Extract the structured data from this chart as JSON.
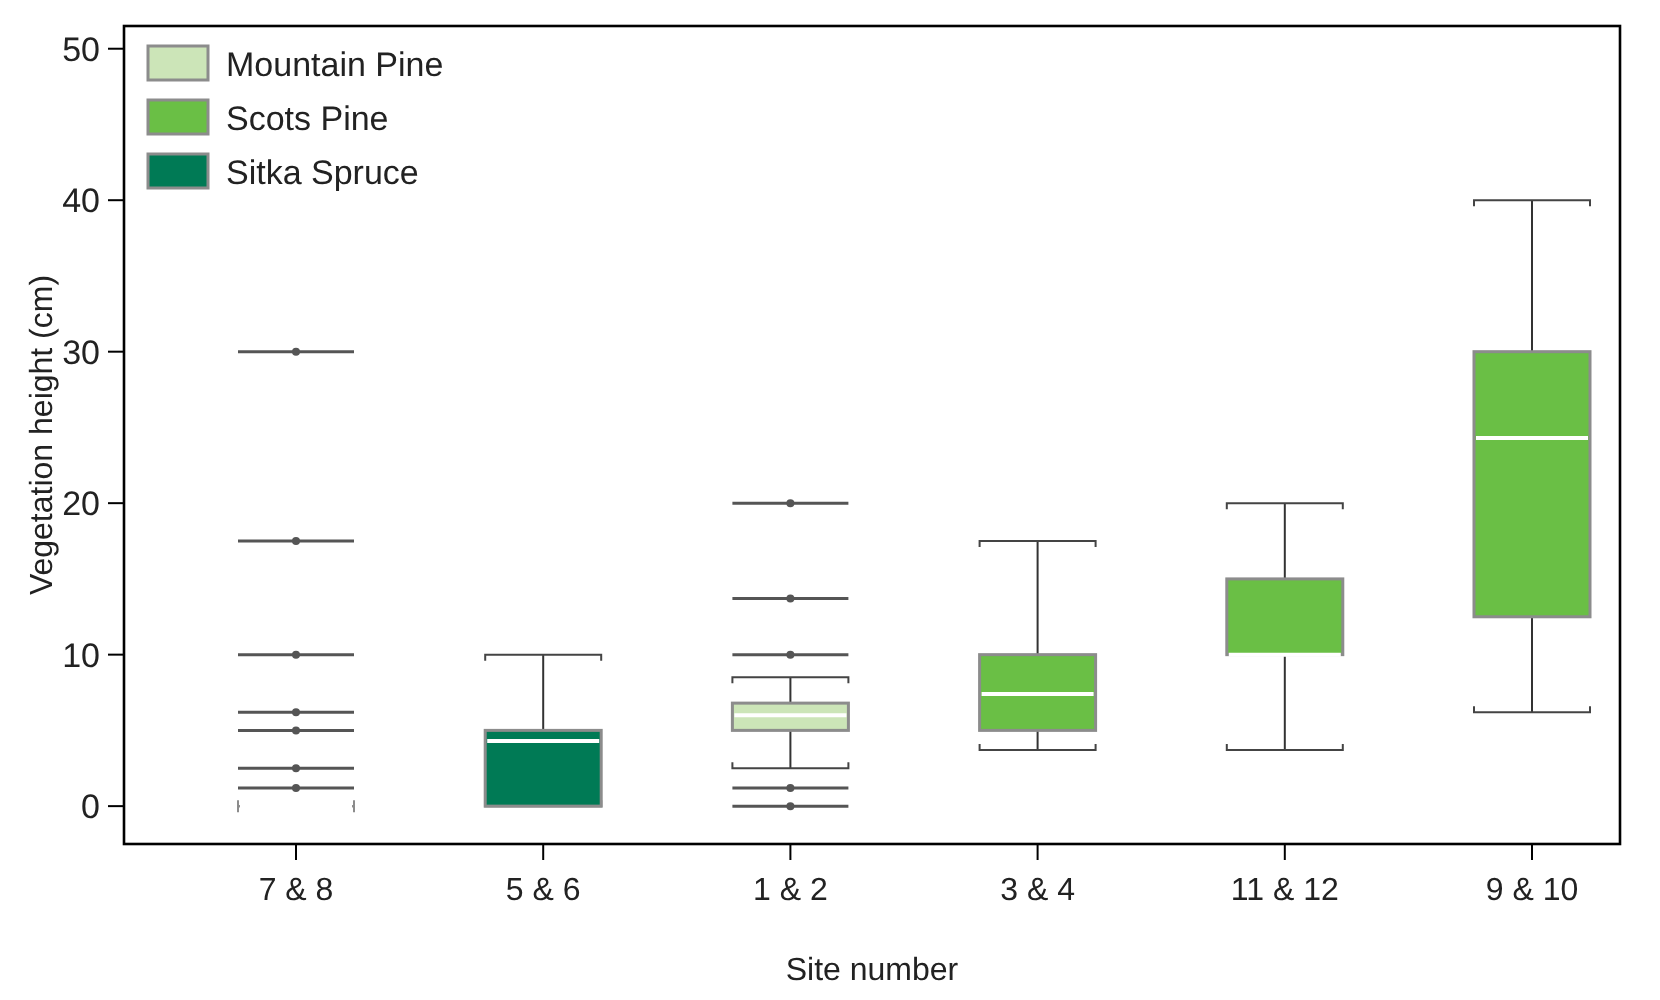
{
  "chart_data": {
    "type": "box",
    "xlabel": "Site number",
    "ylabel": "Vegetation height (cm)",
    "categories": [
      "7 & 8",
      "5 & 6",
      "1 & 2",
      "3 & 4",
      "11 & 12",
      "9 & 10"
    ],
    "ylim": [
      -2.5,
      51.5
    ],
    "yticks": [
      0,
      10,
      20,
      30,
      40,
      50
    ],
    "grid": false,
    "legend": "top left",
    "series": [
      {
        "name": "Mountain Pine",
        "color": "#cce5b8",
        "boxes": [
          null,
          null,
          {
            "low": 2.5,
            "q1": 5,
            "median": 6,
            "q3": 6.8,
            "high": 8.5,
            "outliers": [
              0,
              1.2,
              10,
              13.7,
              20
            ]
          },
          null,
          null,
          null
        ]
      },
      {
        "name": "Scots Pine",
        "color": "#6abf45",
        "boxes": [
          null,
          null,
          null,
          {
            "low": 3.7,
            "q1": 5,
            "median": 7.4,
            "q3": 10,
            "high": 17.5
          },
          {
            "low": 3.7,
            "q1": 10,
            "median": 10,
            "q3": 15,
            "high": 20
          },
          {
            "low": 6.2,
            "q1": 12.5,
            "median": 24.3,
            "q3": 30,
            "high": 40
          }
        ]
      },
      {
        "name": "Sitka Spruce",
        "color": "#007a55",
        "boxes": [
          null,
          {
            "low": 0,
            "q1": 0,
            "median": 4.3,
            "q3": 5,
            "high": 10
          },
          null,
          null,
          null,
          null
        ]
      },
      {
        "color": "#8c8c8c",
        "boxes": [
          {
            "low": 0,
            "q1": 0,
            "median": 0,
            "q3": 0,
            "high": 0,
            "outliers": [
              1.2,
              2.5,
              5,
              6.2,
              10,
              17.5,
              30
            ]
          },
          null,
          null,
          null,
          null,
          null
        ]
      }
    ]
  }
}
